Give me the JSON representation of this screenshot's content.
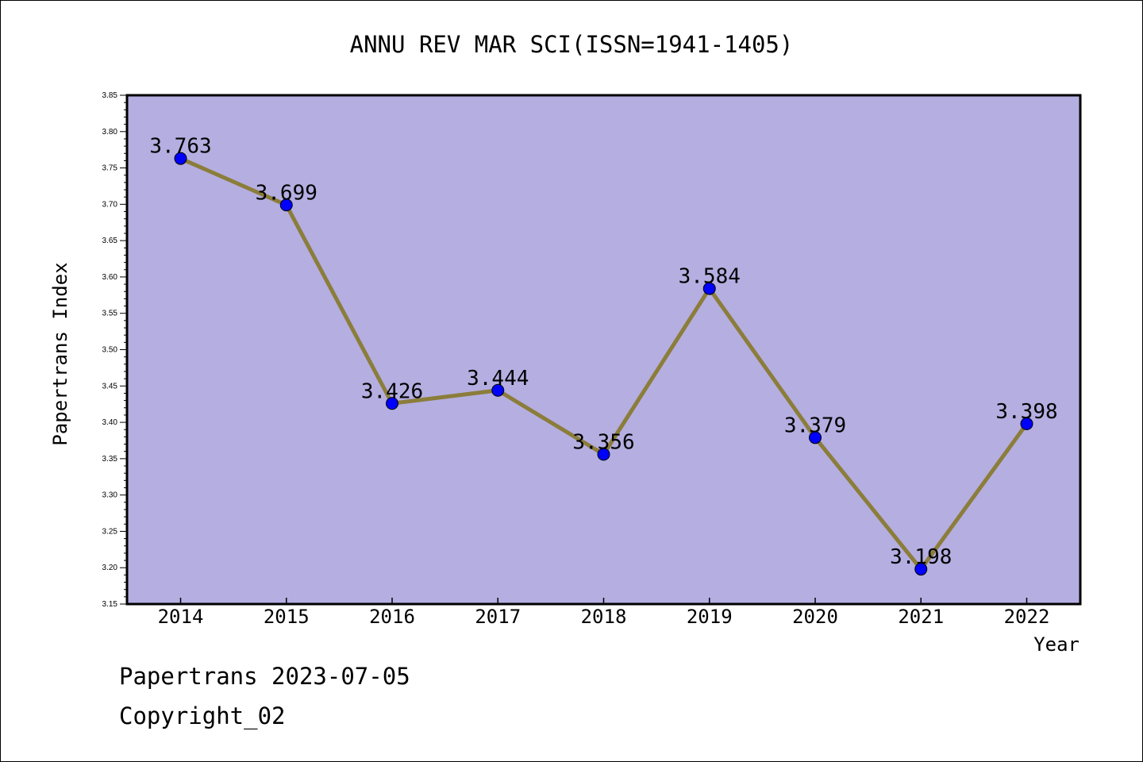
{
  "chart_data": {
    "type": "line",
    "title": "ANNU REV MAR SCI(ISSN=1941-1405)",
    "xlabel": "Year",
    "ylabel": "Papertrans Index",
    "x": [
      "2014",
      "2015",
      "2016",
      "2017",
      "2018",
      "2019",
      "2020",
      "2021",
      "2022"
    ],
    "series": [
      {
        "values": [
          3.763,
          3.699,
          3.426,
          3.444,
          3.356,
          3.584,
          3.379,
          3.198,
          3.398
        ]
      }
    ],
    "data_labels": [
      "3.763",
      "3.699",
      "3.426",
      "3.444",
      "3.356",
      "3.584",
      "3.379",
      "3.198",
      "3.398"
    ],
    "ylim": [
      3.15,
      3.85
    ],
    "yticks": [
      "3.15",
      "3.20",
      "3.25",
      "3.30",
      "3.35",
      "3.40",
      "3.45",
      "3.50",
      "3.55",
      "3.60",
      "3.65",
      "3.70",
      "3.75",
      "3.80",
      "3.85"
    ],
    "grid": false,
    "colors": {
      "plot_background": "#b4aee1",
      "line": "#8b7d3a",
      "marker": "#0000ff"
    }
  },
  "footer": {
    "line1": "Papertrans 2023-07-05",
    "line2": "Copyright_02"
  }
}
